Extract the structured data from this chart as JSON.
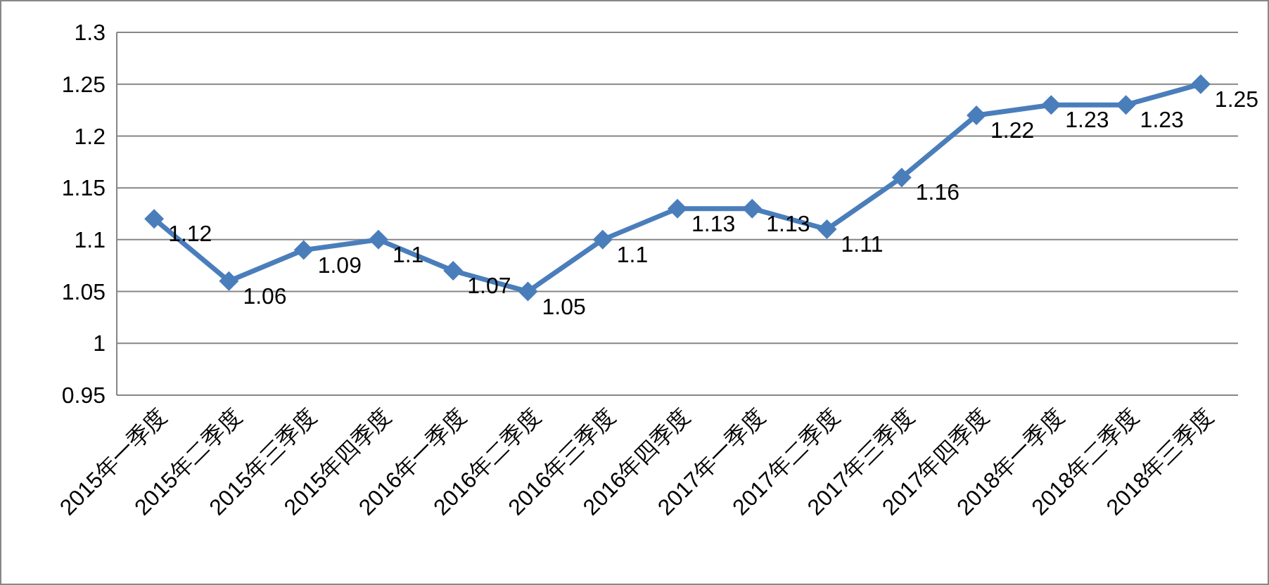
{
  "chart_data": {
    "type": "line",
    "categories": [
      "2015年一季度",
      "2015年二季度",
      "2015年三季度",
      "2015年四季度",
      "2016年一季度",
      "2016年二季度",
      "2016年三季度",
      "2016年四季度",
      "2017年一季度",
      "2017年二季度",
      "2017年三季度",
      "2017年四季度",
      "2018年一季度",
      "2018年二季度",
      "2018年三季度"
    ],
    "series": [
      {
        "color": "#4a7ebb",
        "values": [
          1.12,
          1.06,
          1.09,
          1.1,
          1.07,
          1.05,
          1.1,
          1.13,
          1.13,
          1.11,
          1.16,
          1.22,
          1.23,
          1.23,
          1.25
        ]
      }
    ],
    "ylim": [
      0.95,
      1.3
    ],
    "yticks": [
      0.95,
      1,
      1.05,
      1.1,
      1.15,
      1.2,
      1.25,
      1.3
    ],
    "grid": "y",
    "marker": "diamond",
    "line_style": "solid",
    "data_labels": true
  }
}
